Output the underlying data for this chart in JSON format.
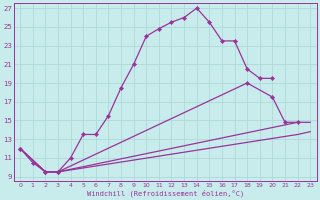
{
  "xlabel": "Windchill (Refroidissement éolien,°C)",
  "bg_color": "#c8ecec",
  "grid_color": "#b0d8d8",
  "line_color": "#993399",
  "xlim": [
    -0.5,
    23.5
  ],
  "ylim": [
    8.5,
    27.5
  ],
  "yticks": [
    9,
    11,
    13,
    15,
    17,
    19,
    21,
    23,
    25,
    27
  ],
  "xticks": [
    0,
    1,
    2,
    3,
    4,
    5,
    6,
    7,
    8,
    9,
    10,
    11,
    12,
    13,
    14,
    15,
    16,
    17,
    18,
    19,
    20,
    21,
    22,
    23
  ],
  "s1_x": [
    0,
    1,
    2,
    3,
    4,
    5,
    6,
    7,
    8,
    9,
    10,
    11,
    12,
    13,
    14,
    15,
    16,
    17,
    18,
    19,
    20
  ],
  "s1_y": [
    12.0,
    10.5,
    9.5,
    9.5,
    11.0,
    13.5,
    13.5,
    15.5,
    18.5,
    21.0,
    24.0,
    24.8,
    25.5,
    26.0,
    27.0,
    25.5,
    23.5,
    23.5,
    20.5,
    19.5,
    19.5
  ],
  "s2_x": [
    0,
    2,
    3,
    18,
    20,
    21,
    22
  ],
  "s2_y": [
    12.0,
    9.5,
    9.5,
    19.0,
    17.5,
    14.8,
    14.8
  ],
  "s3_x": [
    0,
    2,
    3,
    22,
    23
  ],
  "s3_y": [
    12.0,
    9.5,
    9.5,
    14.8,
    14.8
  ],
  "s4_x": [
    0,
    2,
    3,
    22,
    23
  ],
  "s4_y": [
    12.0,
    9.5,
    9.5,
    13.5,
    13.8
  ]
}
